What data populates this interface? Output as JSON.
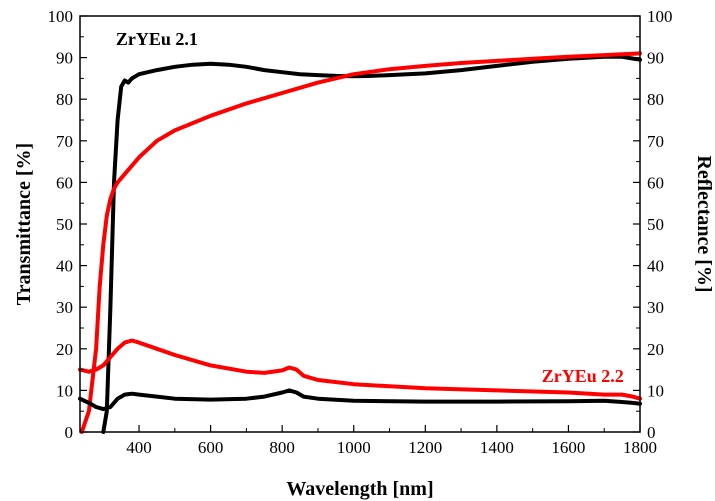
{
  "chart_data": {
    "type": "line",
    "xlabel": "Wavelength [nm]",
    "ylabel_left": "Transmittance [%]",
    "ylabel_right": "Reflectance [%]",
    "xlim": [
      235,
      1800
    ],
    "ylim": [
      0,
      100
    ],
    "x_ticks": [
      400,
      600,
      800,
      1000,
      1200,
      1400,
      1600,
      1800
    ],
    "y_ticks": [
      0,
      10,
      20,
      30,
      40,
      50,
      60,
      70,
      80,
      90,
      100
    ],
    "grid": false,
    "annotations": [
      {
        "text": "ZrYEu 2.1",
        "color": "#000000",
        "x": 450,
        "y": 93
      },
      {
        "text": "ZrYEu 2.2",
        "color": "#ff0000",
        "x": 1640,
        "y": 12
      }
    ],
    "series": [
      {
        "name": "ZrYEu 2.1",
        "axis": "left",
        "color": "#000000",
        "x": [
          300,
          310,
          320,
          330,
          340,
          350,
          360,
          370,
          380,
          390,
          400,
          450,
          500,
          550,
          600,
          650,
          700,
          750,
          800,
          850,
          900,
          950,
          1000,
          1050,
          1100,
          1200,
          1300,
          1400,
          1500,
          1600,
          1700,
          1750,
          1800
        ],
        "y": [
          0,
          5,
          30,
          60,
          75,
          83,
          84.5,
          84,
          85,
          85.5,
          86,
          87,
          87.8,
          88.3,
          88.5,
          88.3,
          87.8,
          87,
          86.5,
          86,
          85.8,
          85.6,
          85.5,
          85.6,
          85.8,
          86.2,
          87,
          88,
          89,
          89.7,
          90.2,
          90.2,
          89.5
        ]
      },
      {
        "name": "ZrYEu 2.2",
        "axis": "left",
        "color": "#ff0000",
        "x": [
          240,
          260,
          280,
          290,
          300,
          310,
          320,
          330,
          340,
          350,
          375,
          400,
          450,
          500,
          600,
          700,
          800,
          900,
          1000,
          1100,
          1200,
          1300,
          1400,
          1500,
          1600,
          1700,
          1750,
          1800
        ],
        "y": [
          0,
          5,
          20,
          35,
          45,
          52,
          56,
          58.5,
          60,
          61,
          63.5,
          66,
          70,
          72.5,
          76,
          79,
          81.5,
          84,
          86,
          87.2,
          88,
          88.7,
          89.2,
          89.7,
          90.2,
          90.6,
          90.8,
          91
        ]
      },
      {
        "name": "ZrYEu 2.1 reflectance",
        "axis": "right",
        "color": "#000000",
        "x": [
          235,
          260,
          280,
          300,
          320,
          340,
          360,
          380,
          400,
          450,
          500,
          600,
          700,
          750,
          800,
          820,
          840,
          860,
          900,
          1000,
          1200,
          1400,
          1600,
          1700,
          1750,
          1780,
          1800
        ],
        "y": [
          8,
          7,
          6,
          5.5,
          6,
          8,
          9,
          9.2,
          9,
          8.5,
          8,
          7.8,
          8,
          8.5,
          9.5,
          10,
          9.5,
          8.5,
          8,
          7.5,
          7.3,
          7.3,
          7.4,
          7.5,
          7.2,
          7,
          6.8
        ]
      },
      {
        "name": "ZrYEu 2.2 reflectance",
        "axis": "right",
        "color": "#ff0000",
        "x": [
          235,
          260,
          280,
          300,
          320,
          340,
          360,
          380,
          400,
          450,
          500,
          600,
          700,
          750,
          800,
          820,
          840,
          860,
          900,
          1000,
          1200,
          1400,
          1600,
          1700,
          1750,
          1780,
          1800
        ],
        "y": [
          15,
          14.5,
          15,
          16,
          18,
          20,
          21.5,
          22,
          21.5,
          20,
          18.5,
          16,
          14.5,
          14.2,
          14.8,
          15.5,
          15,
          13.5,
          12.5,
          11.5,
          10.5,
          10,
          9.5,
          9,
          9,
          8.5,
          8
        ]
      }
    ]
  }
}
